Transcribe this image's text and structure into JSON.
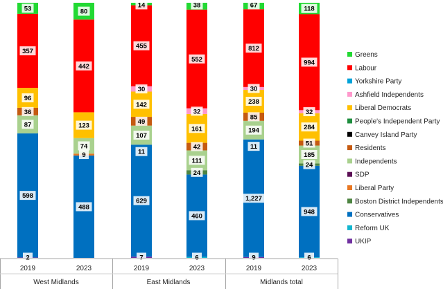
{
  "chart_data": {
    "type": "bar",
    "stacked": true,
    "normalized": true,
    "groups": [
      {
        "label": "West Midlands",
        "bars": [
          "2019",
          "2023"
        ]
      },
      {
        "label": "East Midlands",
        "bars": [
          "2019",
          "2023"
        ]
      },
      {
        "label": "Midlands total",
        "bars": [
          "2019",
          "2023"
        ]
      }
    ],
    "categories": [
      "2019",
      "2023",
      "2019",
      "2023",
      "2019",
      "2023"
    ],
    "series": [
      {
        "name": "UKIP",
        "color": "#7030A0",
        "values": [
          2,
          0,
          7,
          0,
          9,
          0
        ]
      },
      {
        "name": "Reform UK",
        "color": "#12B6CF",
        "values": [
          0,
          0,
          0,
          6,
          0,
          6
        ]
      },
      {
        "name": "Conservatives",
        "color": "#0070C0",
        "values": [
          598,
          488,
          629,
          460,
          1227,
          948
        ]
      },
      {
        "name": "Boston District Independents",
        "color": "#4E8542",
        "values": [
          0,
          0,
          0,
          24,
          0,
          24
        ]
      },
      {
        "name": "Liberal Party",
        "color": "#E87722",
        "values": [
          0,
          9,
          0,
          0,
          0,
          0
        ]
      },
      {
        "name": "SDP",
        "color": "#5B0F55",
        "values": [
          0,
          0,
          0,
          0,
          0,
          0
        ]
      },
      {
        "name": "Independents",
        "color": "#A9D18E",
        "values": [
          87,
          74,
          107,
          111,
          194,
          185
        ]
      },
      {
        "name": "Residents",
        "color": "#C55A11",
        "values": [
          36,
          0,
          49,
          42,
          85,
          51
        ]
      },
      {
        "name": "Canvey Island Party",
        "color": "#000000",
        "values": [
          0,
          0,
          0,
          0,
          0,
          0
        ]
      },
      {
        "name": "People's Independent Party",
        "color": "#1E8E3E",
        "values": [
          0,
          0,
          0,
          0,
          0,
          0
        ]
      },
      {
        "name": "Liberal Democrats",
        "color": "#FFC000",
        "values": [
          96,
          123,
          142,
          161,
          238,
          284
        ]
      },
      {
        "name": "Ashfield Independents",
        "color": "#FF99CC",
        "values": [
          0,
          0,
          30,
          32,
          30,
          32
        ]
      },
      {
        "name": "Yorkshire Party",
        "color": "#00A3D9",
        "values": [
          0,
          0,
          0,
          0,
          0,
          0
        ]
      },
      {
        "name": "Labour",
        "color": "#FF0000",
        "values": [
          357,
          442,
          455,
          552,
          812,
          994
        ]
      },
      {
        "name": "Greens",
        "color": "#22D933",
        "values": [
          53,
          80,
          14,
          38,
          67,
          118
        ]
      }
    ],
    "extra_labels": [
      {
        "bar": 2,
        "series": "Conservatives",
        "text": "11",
        "position": "top"
      },
      {
        "bar": 4,
        "series": "Conservatives",
        "text": "11",
        "position": "top"
      }
    ],
    "data_labels": [
      [
        "2",
        "598",
        "87",
        "36",
        "96",
        "357",
        "53"
      ],
      [
        "488",
        "9",
        "74",
        "123",
        "442",
        "80"
      ],
      [
        "7",
        "629",
        "11",
        "107",
        "49",
        "142",
        "30",
        "455",
        "14"
      ],
      [
        "6",
        "460",
        "24",
        "111",
        "42",
        "161",
        "32",
        "552",
        "38"
      ],
      [
        "9",
        "1,227",
        "11",
        "194",
        "85",
        "238",
        "30",
        "812",
        "67"
      ],
      [
        "6",
        "948",
        "24",
        "185",
        "51",
        "284",
        "32",
        "994",
        "118"
      ]
    ],
    "legend_order": [
      "Greens",
      "Labour",
      "Yorkshire Party",
      "Ashfield Independents",
      "Liberal Democrats",
      "People's Independent Party",
      "Canvey Island Party",
      "Residents",
      "Independents",
      "SDP",
      "Liberal Party",
      "Boston District Independents",
      "Conservatives",
      "Reform UK",
      "UKIP"
    ],
    "legend_position": "right",
    "ylim": [
      0,
      1
    ],
    "grid": false
  }
}
